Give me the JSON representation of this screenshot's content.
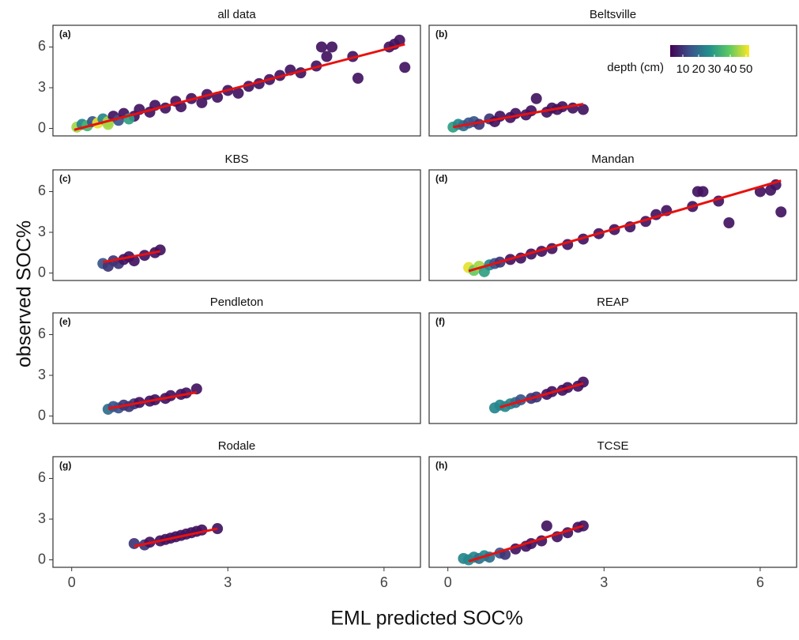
{
  "axes": {
    "xlabel": "EML predicted SOC%",
    "ylabel": "observed SOC%",
    "xlim": [
      -0.36,
      6.7
    ],
    "ylim": [
      -0.55,
      7.6
    ],
    "xticks": [
      0,
      3,
      6
    ],
    "yticks": [
      0,
      3,
      6
    ]
  },
  "legend": {
    "title": "depth (cm)",
    "lim": [
      2,
      52
    ],
    "ticks": [
      10,
      20,
      30,
      40,
      50
    ],
    "colors": [
      "#440154",
      "#3b528b",
      "#21918c",
      "#5ec962",
      "#fde725"
    ]
  },
  "chart_data": [
    {
      "type": "scatter",
      "title": "all data",
      "label": "(a)",
      "x": [
        0.1,
        0.2,
        0.3,
        0.4,
        0.5,
        0.6,
        0.7,
        0.8,
        0.9,
        1.0,
        1.2,
        1.3,
        1.5,
        1.6,
        1.8,
        2.0,
        2.1,
        2.3,
        2.5,
        2.6,
        2.8,
        3.0,
        3.2,
        3.4,
        3.6,
        3.8,
        4.0,
        4.2,
        4.4,
        4.7,
        4.9,
        4.8,
        5.0,
        5.4,
        5.5,
        6.1,
        6.2,
        6.3,
        6.4,
        0.7,
        1.1
      ],
      "y": [
        0.1,
        0.3,
        0.2,
        0.5,
        0.4,
        0.7,
        0.5,
        0.9,
        0.6,
        1.1,
        0.9,
        1.4,
        1.2,
        1.7,
        1.5,
        2.0,
        1.6,
        2.2,
        1.9,
        2.5,
        2.3,
        2.8,
        2.6,
        3.1,
        3.3,
        3.6,
        3.9,
        4.3,
        4.1,
        4.6,
        5.3,
        6.0,
        6.0,
        5.3,
        3.7,
        6.0,
        6.2,
        6.5,
        4.5,
        0.3,
        0.7
      ],
      "depth": [
        45,
        25,
        35,
        15,
        50,
        25,
        45,
        5,
        15,
        5,
        5,
        5,
        5,
        5,
        5,
        5,
        5,
        5,
        5,
        5,
        5,
        5,
        5,
        5,
        5,
        5,
        5,
        5,
        5,
        5,
        5,
        5,
        5,
        5,
        5,
        5,
        5,
        5,
        5,
        45,
        30
      ],
      "fit": {
        "x": [
          0.05,
          6.4
        ],
        "y": [
          -0.1,
          6.2
        ],
        "color": "#e8110f"
      }
    },
    {
      "type": "scatter",
      "title": "Beltsville",
      "label": "(b)",
      "x": [
        0.1,
        0.2,
        0.3,
        0.4,
        0.5,
        0.6,
        0.8,
        0.9,
        1.0,
        1.2,
        1.3,
        1.5,
        1.6,
        1.7,
        1.9,
        2.0,
        2.1,
        2.2,
        2.4,
        2.6
      ],
      "y": [
        0.1,
        0.3,
        0.2,
        0.4,
        0.5,
        0.3,
        0.7,
        0.5,
        0.9,
        0.8,
        1.1,
        1.0,
        1.3,
        2.2,
        1.2,
        1.5,
        1.4,
        1.6,
        1.5,
        1.4
      ],
      "depth": [
        30,
        25,
        20,
        15,
        15,
        10,
        10,
        5,
        5,
        5,
        5,
        5,
        5,
        5,
        5,
        5,
        5,
        5,
        5,
        5
      ],
      "fit": {
        "x": [
          0.1,
          2.6
        ],
        "y": [
          0.1,
          1.8
        ],
        "color": "#e8110f"
      }
    },
    {
      "type": "scatter",
      "title": "KBS",
      "label": "(c)",
      "x": [
        0.6,
        0.7,
        0.8,
        0.9,
        1.0,
        1.1,
        1.2,
        1.4,
        1.6,
        1.7
      ],
      "y": [
        0.7,
        0.5,
        0.9,
        0.7,
        1.0,
        1.2,
        0.9,
        1.3,
        1.5,
        1.7
      ],
      "depth": [
        15,
        10,
        10,
        10,
        5,
        5,
        5,
        5,
        5,
        5
      ],
      "fit": {
        "x": [
          0.6,
          1.7
        ],
        "y": [
          0.8,
          1.6
        ],
        "color": "#e8110f"
      }
    },
    {
      "type": "scatter",
      "title": "Mandan",
      "label": "(d)",
      "x": [
        0.4,
        0.5,
        0.6,
        0.7,
        0.8,
        0.9,
        1.0,
        1.2,
        1.4,
        1.6,
        1.8,
        2.0,
        2.3,
        2.6,
        2.9,
        3.2,
        3.5,
        3.8,
        4.0,
        4.2,
        4.7,
        4.8,
        4.9,
        5.2,
        5.4,
        6.0,
        6.2,
        6.3,
        6.4
      ],
      "y": [
        0.4,
        0.2,
        0.5,
        0.1,
        0.6,
        0.7,
        0.8,
        1.0,
        1.1,
        1.4,
        1.6,
        1.8,
        2.1,
        2.5,
        2.9,
        3.2,
        3.4,
        3.8,
        4.3,
        4.6,
        4.9,
        6.0,
        6.0,
        5.3,
        3.7,
        6.0,
        6.1,
        6.5,
        4.5
      ],
      "depth": [
        50,
        40,
        45,
        30,
        25,
        15,
        10,
        5,
        5,
        5,
        5,
        5,
        5,
        5,
        5,
        5,
        5,
        5,
        5,
        5,
        5,
        5,
        5,
        5,
        5,
        5,
        5,
        5,
        5
      ],
      "fit": {
        "x": [
          0.4,
          6.4
        ],
        "y": [
          0.15,
          6.8
        ],
        "color": "#e8110f"
      }
    },
    {
      "type": "scatter",
      "title": "Pendleton",
      "label": "(e)",
      "x": [
        0.7,
        0.8,
        0.9,
        1.0,
        1.1,
        1.2,
        1.3,
        1.5,
        1.6,
        1.8,
        1.9,
        2.1,
        2.2,
        2.4
      ],
      "y": [
        0.5,
        0.7,
        0.6,
        0.8,
        0.7,
        0.9,
        1.0,
        1.1,
        1.2,
        1.3,
        1.5,
        1.6,
        1.7,
        2.0
      ],
      "depth": [
        20,
        15,
        15,
        10,
        10,
        10,
        5,
        5,
        5,
        5,
        5,
        5,
        5,
        5
      ],
      "fit": {
        "x": [
          0.7,
          2.4
        ],
        "y": [
          0.55,
          1.75
        ],
        "color": "#e8110f"
      }
    },
    {
      "type": "scatter",
      "title": "REAP",
      "label": "(f)",
      "x": [
        0.9,
        1.0,
        1.1,
        1.2,
        1.3,
        1.4,
        1.6,
        1.7,
        1.9,
        2.0,
        2.2,
        2.3,
        2.5,
        2.6
      ],
      "y": [
        0.6,
        0.8,
        0.7,
        0.9,
        1.0,
        1.2,
        1.3,
        1.4,
        1.6,
        1.8,
        1.9,
        2.1,
        2.2,
        2.5
      ],
      "depth": [
        25,
        25,
        25,
        25,
        20,
        15,
        10,
        10,
        5,
        5,
        5,
        5,
        5,
        5
      ],
      "fit": {
        "x": [
          1.0,
          2.6
        ],
        "y": [
          0.65,
          2.4
        ],
        "color": "#e8110f"
      }
    },
    {
      "type": "scatter",
      "title": "Rodale",
      "label": "(g)",
      "x": [
        1.2,
        1.4,
        1.5,
        1.7,
        1.8,
        1.9,
        2.0,
        2.1,
        2.2,
        2.3,
        2.4,
        2.5,
        2.8
      ],
      "y": [
        1.2,
        1.1,
        1.3,
        1.4,
        1.5,
        1.6,
        1.7,
        1.8,
        1.9,
        2.0,
        2.1,
        2.2,
        2.3
      ],
      "depth": [
        10,
        10,
        5,
        5,
        5,
        5,
        5,
        5,
        5,
        5,
        5,
        5,
        5
      ],
      "fit": {
        "x": [
          1.2,
          2.8
        ],
        "y": [
          1.0,
          2.3
        ],
        "color": "#e8110f"
      }
    },
    {
      "type": "scatter",
      "title": "TCSE",
      "label": "(h)",
      "x": [
        0.3,
        0.4,
        0.5,
        0.6,
        0.7,
        0.8,
        1.0,
        1.1,
        1.3,
        1.5,
        1.6,
        1.8,
        1.9,
        2.1,
        2.3,
        2.5,
        2.6
      ],
      "y": [
        0.1,
        0.0,
        0.2,
        0.1,
        0.3,
        0.2,
        0.5,
        0.4,
        0.8,
        1.0,
        1.2,
        1.4,
        2.5,
        1.7,
        2.0,
        2.4,
        2.5
      ],
      "depth": [
        25,
        25,
        25,
        20,
        25,
        20,
        15,
        10,
        5,
        5,
        5,
        5,
        5,
        5,
        5,
        5,
        5
      ],
      "fit": {
        "x": [
          0.4,
          2.6
        ],
        "y": [
          -0.1,
          2.5
        ],
        "color": "#e8110f"
      }
    }
  ]
}
